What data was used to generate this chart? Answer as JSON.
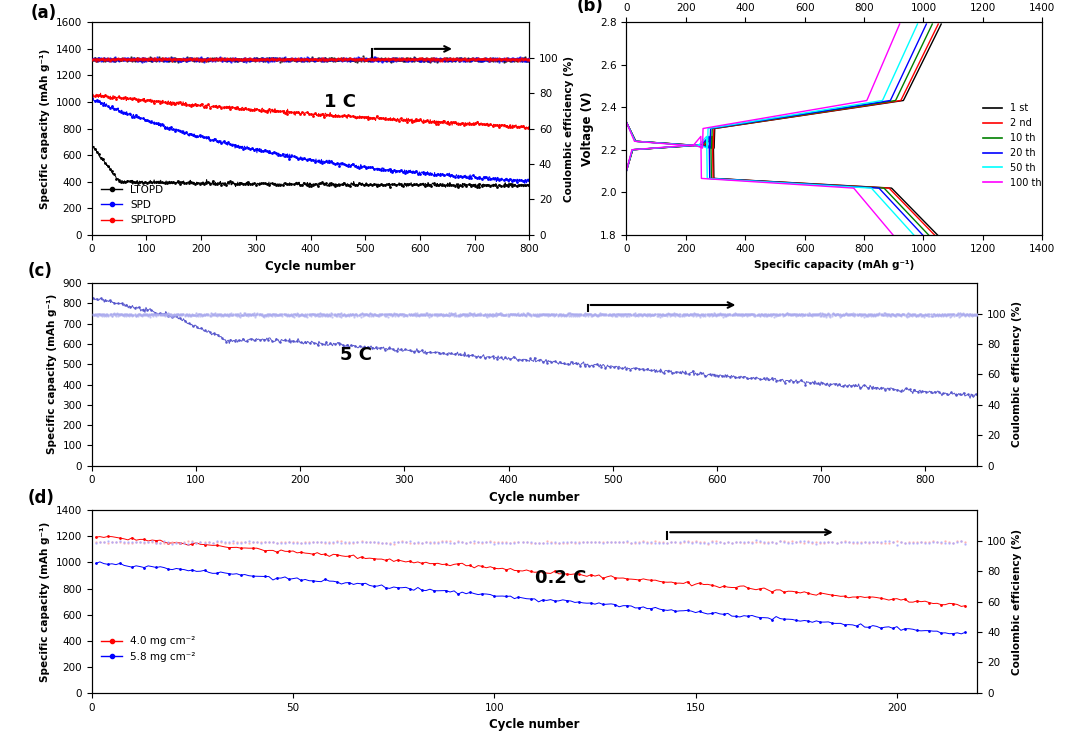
{
  "panel_a": {
    "title": "1 C",
    "xlabel": "Cycle number",
    "ylabel": "Specific capacity (mAh g⁻¹)",
    "ylabel2": "Coulombic efficiency (%)",
    "xlim": [
      0,
      800
    ],
    "ylim": [
      0,
      1600
    ],
    "ylim2": [
      0,
      120
    ],
    "yticks": [
      0,
      200,
      400,
      600,
      800,
      1000,
      1200,
      1400,
      1600
    ],
    "yticks2": [
      0,
      20,
      40,
      60,
      80,
      100
    ],
    "xticks": [
      0,
      100,
      200,
      300,
      400,
      500,
      600,
      700,
      800
    ],
    "legend": [
      "LTOPD",
      "SPD",
      "SPLTOPD"
    ],
    "colors": [
      "black",
      "blue",
      "red"
    ],
    "label": "(a)"
  },
  "panel_b": {
    "xlabel": "Specific capacity (mAh g⁻¹)",
    "ylabel": "Voltage (V)",
    "xlim": [
      0,
      1400
    ],
    "ylim": [
      1.8,
      2.8
    ],
    "xticks": [
      0,
      200,
      400,
      600,
      800,
      1000,
      1200,
      1400
    ],
    "yticks": [
      1.8,
      2.0,
      2.2,
      2.4,
      2.6,
      2.8
    ],
    "legend": [
      "1 st",
      "2 nd",
      "10 th",
      "20 th",
      "50 th",
      "100 th"
    ],
    "colors": [
      "black",
      "red",
      "green",
      "blue",
      "cyan",
      "magenta"
    ],
    "label": "(b)"
  },
  "panel_c": {
    "title": "5 C",
    "xlabel": "Cycle number",
    "ylabel": "Specific capacity (mAh g⁻¹)",
    "ylabel2": "Coulombic efficiency (%)",
    "xlim": [
      0,
      850
    ],
    "ylim": [
      0,
      900
    ],
    "ylim2": [
      0,
      120
    ],
    "yticks": [
      0,
      100,
      200,
      300,
      400,
      500,
      600,
      700,
      800,
      900
    ],
    "yticks2": [
      0,
      20,
      40,
      60,
      80,
      100
    ],
    "xticks": [
      0,
      100,
      200,
      300,
      400,
      500,
      600,
      700,
      800
    ],
    "color": "#5555cc",
    "ce_color": "#aaaaee",
    "label": "(c)"
  },
  "panel_d": {
    "title": "0.2 C",
    "xlabel": "Cycle number",
    "ylabel": "Specific capacity (mAh g⁻¹)",
    "ylabel2": "Coulombic efficiency (%)",
    "xlim": [
      0,
      220
    ],
    "ylim": [
      0,
      1400
    ],
    "ylim2": [
      0,
      120
    ],
    "yticks": [
      0,
      200,
      400,
      600,
      800,
      1000,
      1200,
      1400
    ],
    "yticks2": [
      0,
      20,
      40,
      60,
      80,
      100
    ],
    "xticks": [
      0,
      50,
      100,
      150,
      200
    ],
    "legend": [
      "4.0 mg cm⁻²",
      "5.8 mg cm⁻²"
    ],
    "colors": [
      "red",
      "blue"
    ],
    "ce_colors": [
      "#ffaaaa",
      "#aaaaff"
    ],
    "label": "(d)"
  }
}
